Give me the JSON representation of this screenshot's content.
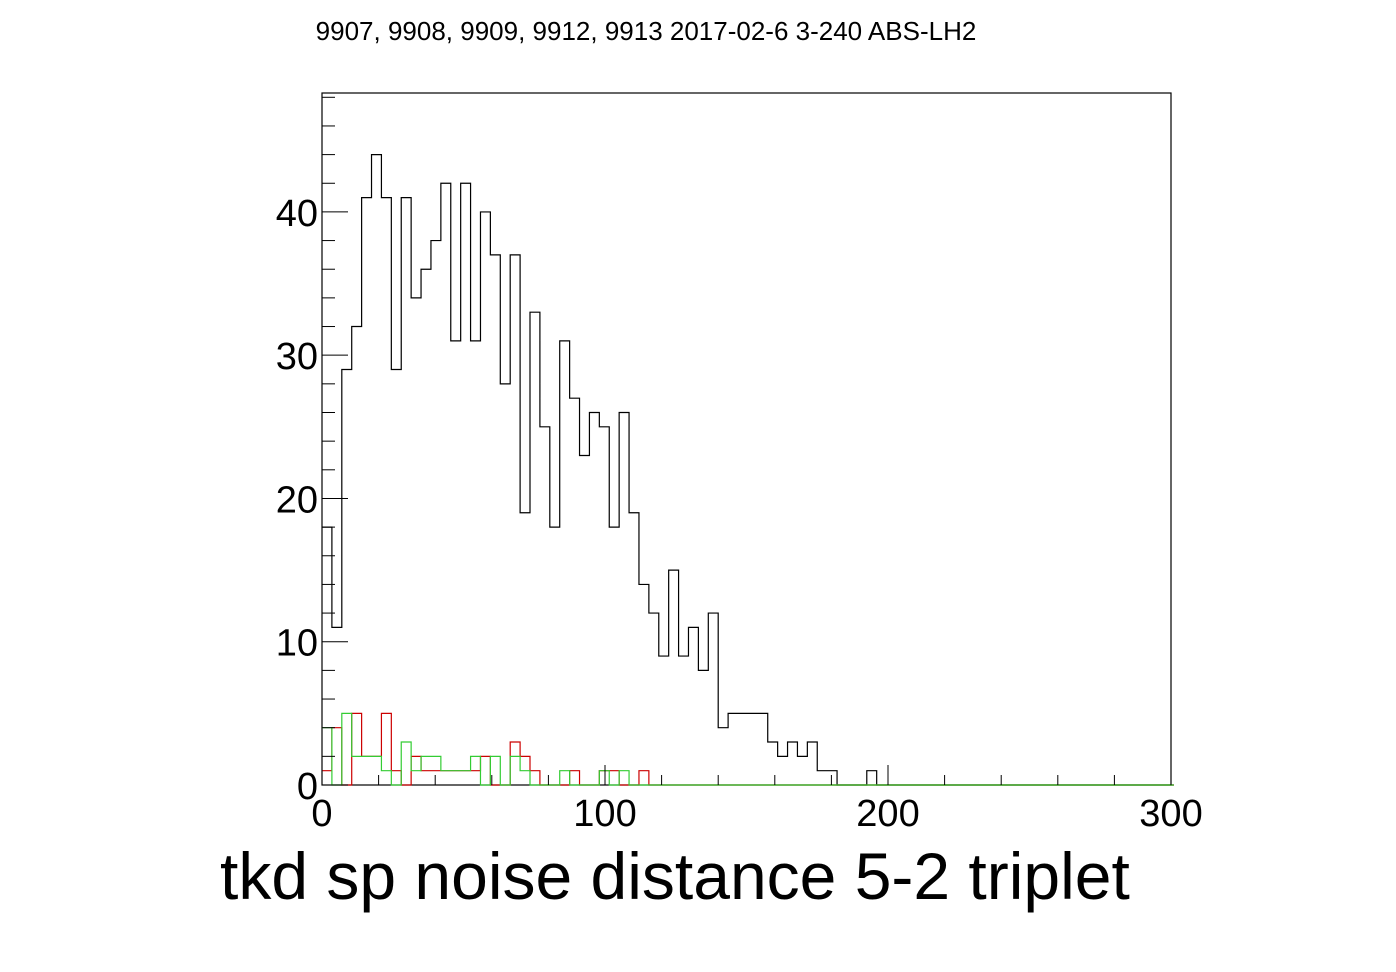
{
  "chart_data": {
    "type": "histogram",
    "title": "9907, 9908, 9909, 9912, 9913 2017-02-6 3-240 ABS-LH2",
    "xlabel": "tkd sp noise distance 5-2 triplet",
    "ylabel": "",
    "xlim": [
      0,
      300
    ],
    "ylim": [
      0,
      48.3
    ],
    "x_ticks": [
      "0",
      "100",
      "200",
      "300"
    ],
    "y_ticks": [
      "0",
      "10",
      "20",
      "30",
      "40"
    ],
    "x_tick_values": [
      0,
      100,
      200,
      300
    ],
    "y_tick_values": [
      0,
      10,
      20,
      30,
      40
    ],
    "bin_width": 3.5,
    "grid": false,
    "legend": "none",
    "series": [
      {
        "color": "#000000",
        "values": [
          18,
          11,
          29,
          32,
          41,
          44,
          41,
          29,
          41,
          34,
          36,
          38,
          42,
          31,
          42,
          31,
          40,
          37,
          28,
          37,
          19,
          33,
          25,
          18,
          31,
          27,
          23,
          26,
          25,
          18,
          26,
          19,
          14,
          12,
          9,
          15,
          9,
          11,
          8,
          12,
          4,
          5,
          5,
          5,
          5,
          3,
          2,
          3,
          2,
          3,
          1,
          1,
          0,
          0,
          0,
          1,
          0,
          0,
          0,
          0,
          0,
          0,
          0,
          0,
          0,
          0,
          0,
          0,
          0,
          0,
          0,
          0,
          0,
          0,
          0,
          0,
          0,
          0,
          0,
          0,
          0,
          0,
          0,
          0,
          0,
          0
        ]
      },
      {
        "color": "#cc0000",
        "values": [
          1,
          4,
          0,
          5,
          2,
          2,
          5,
          1,
          0,
          2,
          1,
          1,
          1,
          1,
          1,
          1,
          2,
          0,
          0,
          3,
          2,
          1,
          0,
          0,
          0,
          1,
          0,
          0,
          1,
          1,
          0,
          0,
          1,
          0,
          0,
          0,
          0,
          0,
          0,
          0,
          0,
          0,
          0,
          0,
          0,
          0,
          0,
          0,
          0,
          0,
          0,
          0,
          0,
          0,
          0,
          0,
          0,
          0,
          0,
          0,
          0,
          0,
          0,
          0,
          0,
          0,
          0,
          0,
          0,
          0,
          0,
          0,
          0,
          0,
          0,
          0,
          0,
          0,
          0,
          0,
          0,
          0,
          0,
          0,
          0,
          0
        ]
      },
      {
        "color": "#33cc33",
        "values": [
          4,
          0,
          5,
          2,
          2,
          2,
          1,
          0,
          3,
          1,
          2,
          2,
          1,
          1,
          1,
          2,
          0,
          2,
          0,
          2,
          1,
          0,
          0,
          0,
          1,
          0,
          0,
          0,
          1,
          0,
          1,
          0,
          0,
          0,
          0,
          0,
          0,
          0,
          0,
          0,
          0,
          0,
          0,
          0,
          0,
          0,
          0,
          0,
          0,
          0,
          0,
          0,
          0,
          0,
          0,
          0,
          0,
          0,
          0,
          0,
          0,
          0,
          0,
          0,
          0,
          0,
          0,
          0,
          0,
          0,
          0,
          0,
          0,
          0,
          0,
          0,
          0,
          0,
          0,
          0,
          0,
          0,
          0,
          0,
          0,
          0
        ]
      }
    ]
  }
}
